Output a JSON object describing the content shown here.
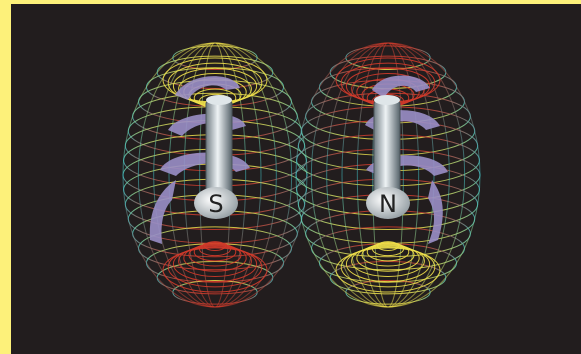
{
  "labels": {
    "south": "S",
    "north": "N"
  },
  "colors": {
    "background": "#221d1e",
    "frame_accent": "#fdf17a",
    "ring_yellow": "#f0e04a",
    "ring_cyan": "#3fbfc4",
    "ring_red": "#d23a2a",
    "magnet": "#b8c2c8",
    "ribbon": "#9a8fc7"
  }
}
